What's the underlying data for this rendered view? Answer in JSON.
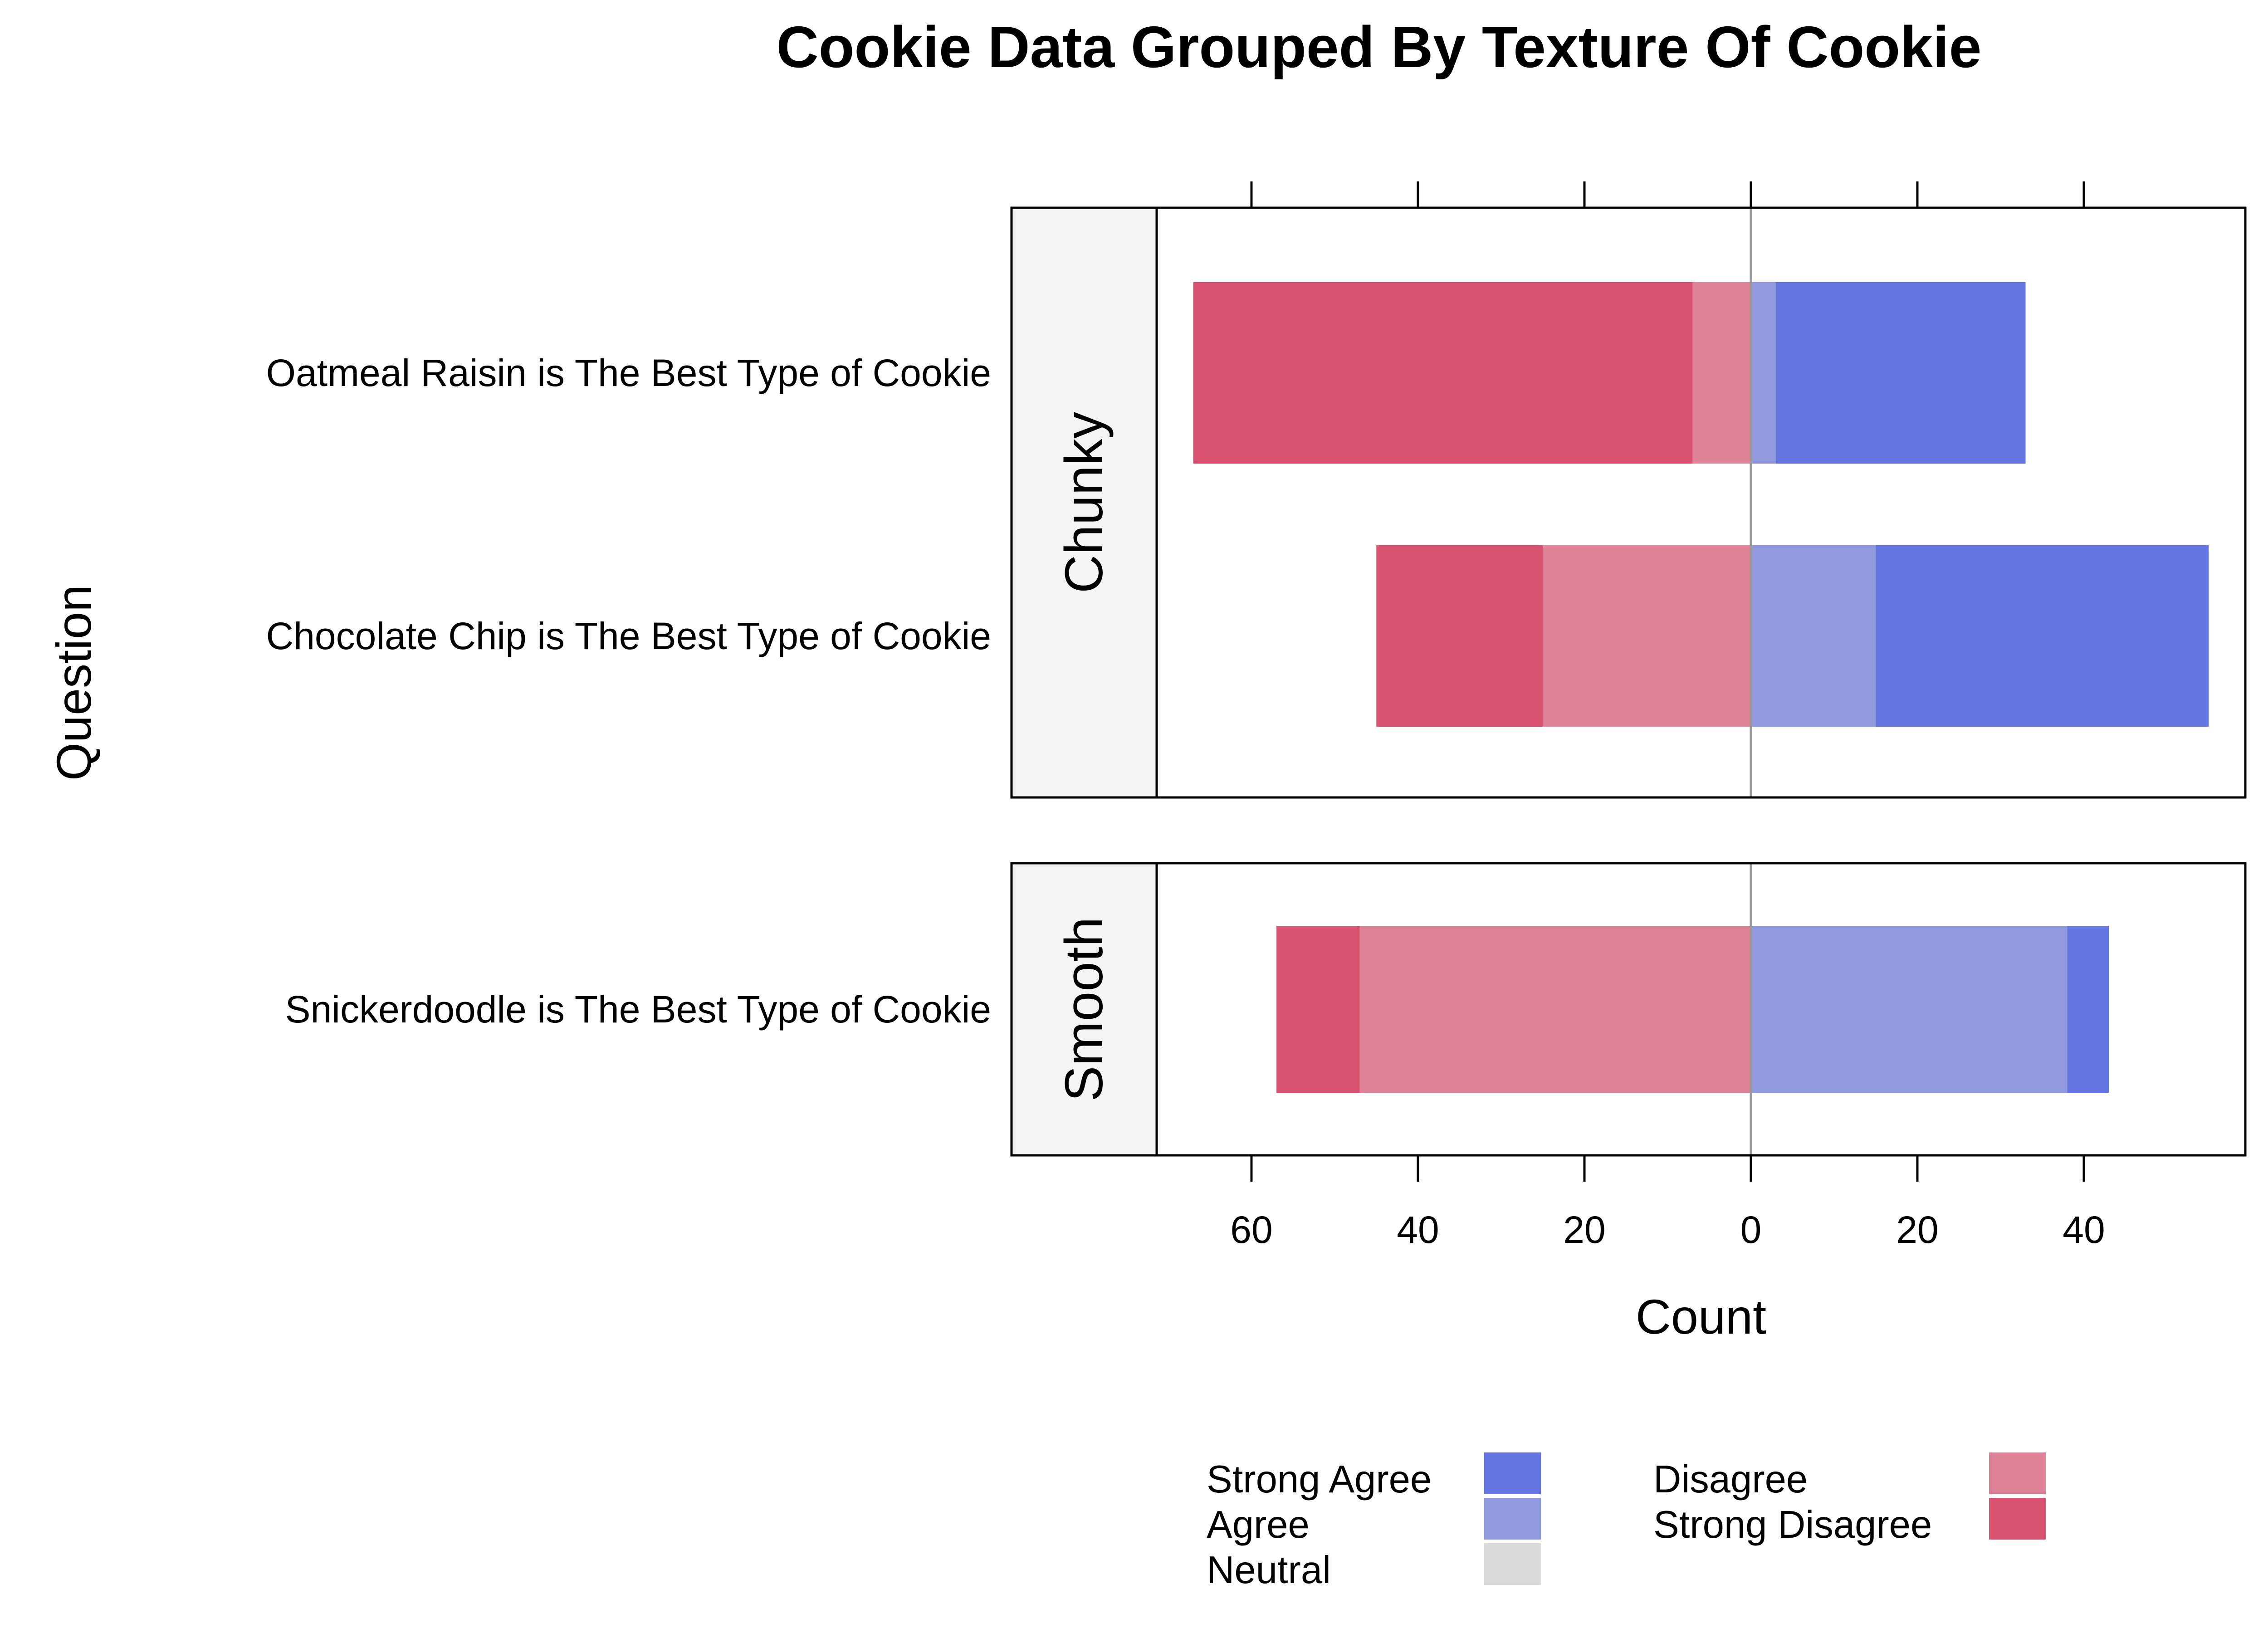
{
  "chart_data": {
    "type": "bar",
    "orientation": "horizontal-diverging",
    "title": "Cookie Data Grouped By Texture Of Cookie",
    "xlabel": "Count",
    "ylabel": "Question",
    "xlim": [
      -70,
      60
    ],
    "x_ticks": [
      {
        "value": -60,
        "label": "60"
      },
      {
        "value": -40,
        "label": "40"
      },
      {
        "value": -20,
        "label": "20"
      },
      {
        "value": 0,
        "label": "0"
      },
      {
        "value": 20,
        "label": "20"
      },
      {
        "value": 40,
        "label": "40"
      }
    ],
    "grid": false,
    "legend_position": "bottom",
    "levels": [
      {
        "name": "Strong Agree",
        "color": "#6474E0"
      },
      {
        "name": "Agree",
        "color": "#929ADF"
      },
      {
        "name": "Neutral",
        "color": "#DADADA"
      },
      {
        "name": "Disagree",
        "color": "#DE8397"
      },
      {
        "name": "Strong Disagree",
        "color": "#D95370"
      }
    ],
    "panels": [
      {
        "strip": "Chunky",
        "rows": [
          {
            "question": "Oatmeal Raisin is The Best Type of Cookie",
            "values": {
              "Strong Agree": 30,
              "Agree": 3,
              "Neutral": 0,
              "Disagree": 7,
              "Strong Disagree": 60
            }
          },
          {
            "question": "Chocolate Chip is The Best Type of Cookie",
            "values": {
              "Strong Agree": 40,
              "Agree": 15,
              "Neutral": 0,
              "Disagree": 25,
              "Strong Disagree": 20
            }
          }
        ]
      },
      {
        "strip": "Smooth",
        "rows": [
          {
            "question": "Snickerdoodle is The Best Type of Cookie",
            "values": {
              "Strong Agree": 5,
              "Agree": 38,
              "Neutral": 0,
              "Disagree": 47,
              "Strong Disagree": 10
            }
          }
        ]
      }
    ]
  }
}
